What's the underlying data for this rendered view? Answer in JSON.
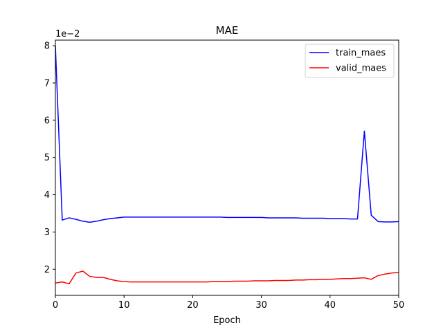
{
  "chart_data": {
    "type": "line",
    "title": "MAE",
    "xlabel": "Epoch",
    "ylabel": "",
    "y_offset_label": "1e−2",
    "xlim": [
      0,
      50
    ],
    "ylim": [
      1.3,
      8.15
    ],
    "xticks": [
      0,
      10,
      20,
      30,
      40,
      50
    ],
    "yticks": [
      2,
      3,
      4,
      5,
      6,
      7,
      8
    ],
    "grid": false,
    "legend_position": "upper-right",
    "x": [
      0,
      1,
      2,
      3,
      4,
      5,
      6,
      7,
      8,
      9,
      10,
      11,
      12,
      13,
      14,
      15,
      16,
      17,
      18,
      19,
      20,
      21,
      22,
      23,
      24,
      25,
      26,
      27,
      28,
      29,
      30,
      31,
      32,
      33,
      34,
      35,
      36,
      37,
      38,
      39,
      40,
      41,
      42,
      43,
      44,
      45,
      46,
      47,
      48,
      49,
      50
    ],
    "series": [
      {
        "name": "train_maes",
        "color": "#0000ff",
        "values": [
          8.0,
          3.32,
          3.38,
          3.34,
          3.29,
          3.26,
          3.29,
          3.33,
          3.36,
          3.38,
          3.4,
          3.4,
          3.4,
          3.4,
          3.4,
          3.4,
          3.4,
          3.4,
          3.4,
          3.4,
          3.4,
          3.4,
          3.4,
          3.4,
          3.4,
          3.39,
          3.39,
          3.39,
          3.39,
          3.39,
          3.39,
          3.38,
          3.38,
          3.38,
          3.38,
          3.38,
          3.37,
          3.37,
          3.37,
          3.37,
          3.36,
          3.36,
          3.36,
          3.35,
          3.35,
          5.71,
          3.45,
          3.28,
          3.27,
          3.27,
          3.28
        ]
      },
      {
        "name": "valid_maes",
        "color": "#ff0000",
        "values": [
          1.63,
          1.66,
          1.61,
          1.9,
          1.95,
          1.81,
          1.78,
          1.78,
          1.73,
          1.69,
          1.67,
          1.66,
          1.66,
          1.66,
          1.66,
          1.66,
          1.66,
          1.66,
          1.66,
          1.66,
          1.66,
          1.66,
          1.66,
          1.67,
          1.67,
          1.67,
          1.68,
          1.68,
          1.68,
          1.69,
          1.69,
          1.69,
          1.7,
          1.7,
          1.7,
          1.71,
          1.71,
          1.72,
          1.72,
          1.73,
          1.73,
          1.74,
          1.75,
          1.75,
          1.76,
          1.77,
          1.73,
          1.83,
          1.87,
          1.9,
          1.91
        ]
      }
    ]
  }
}
